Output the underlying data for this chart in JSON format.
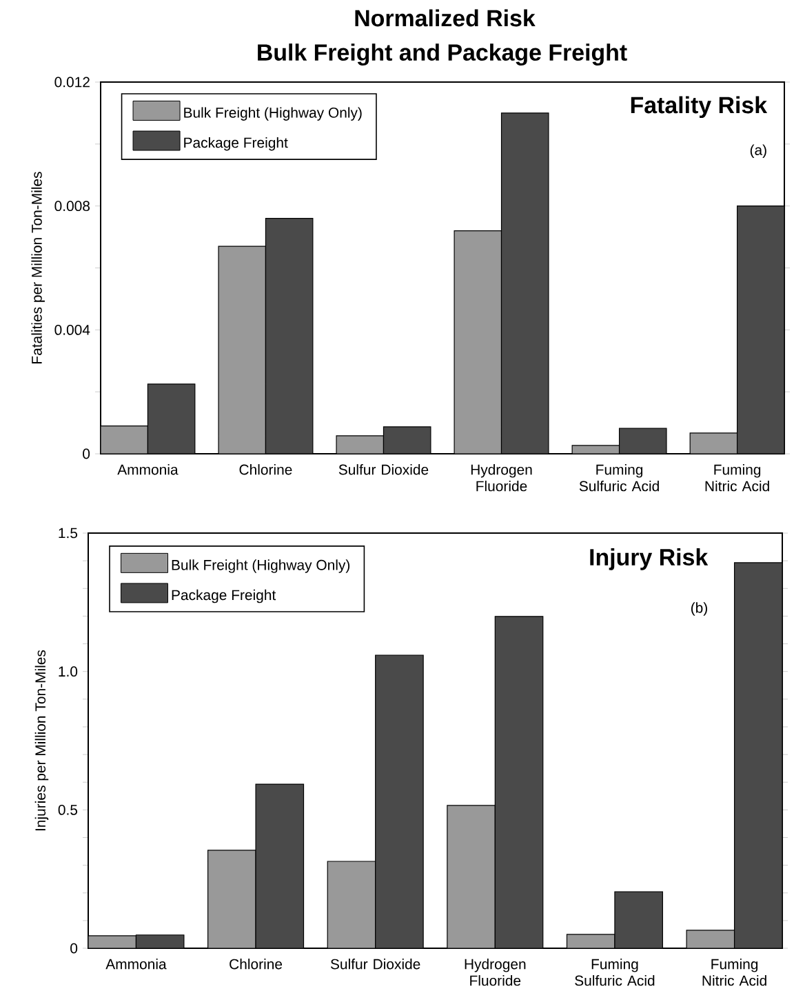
{
  "chart_data": [
    {
      "type": "bar",
      "title": "Normalized Risk",
      "subtitle": "Bulk Freight and Package Freight",
      "ylabel": "Fatalities per Million Ton-Miles",
      "annotations": [
        "Fatality Risk",
        "(a)"
      ],
      "categories": [
        "Ammonia",
        "Chlorine",
        "Sulfur Dioxide",
        "Hydrogen Fluoride",
        "Fuming Sulfuric Acid",
        "Fuming Nitric Acid"
      ],
      "series": [
        {
          "name": "Bulk Freight (Highway Only)",
          "color": "#999999",
          "values": [
            0.0009,
            0.0067,
            0.00058,
            0.0072,
            0.00027,
            0.00067
          ]
        },
        {
          "name": "Package Freight",
          "color": "#4a4a4a",
          "values": [
            0.00225,
            0.0076,
            0.00087,
            0.011,
            0.00082,
            0.008
          ]
        }
      ],
      "ylim": [
        0,
        0.012
      ],
      "yticks": [
        0,
        {
          "value": 0.002,
          "label": null
        },
        0.004,
        {
          "value": 0.006,
          "label": null
        },
        0.008,
        {
          "value": 0.01,
          "label": null
        },
        0.012
      ],
      "grid": false,
      "legend": "top left"
    },
    {
      "type": "bar",
      "ylabel": "Injuries per Million Ton-Miles",
      "annotations": [
        "Injury Risk",
        "(b)"
      ],
      "categories": [
        "Ammonia",
        "Chlorine",
        "Sulfur Dioxide",
        "Hydrogen Fluoride",
        "Fuming Sulfuric Acid",
        "Fuming Nitric Acid"
      ],
      "series": [
        {
          "name": "Bulk Freight (Highway Only)",
          "color": "#999999",
          "values": [
            0.045,
            0.354,
            0.314,
            0.516,
            0.05,
            0.065
          ]
        },
        {
          "name": "Package Freight",
          "color": "#4a4a4a",
          "values": [
            0.048,
            0.593,
            1.059,
            1.199,
            0.204,
            1.393
          ]
        }
      ],
      "ylim": [
        0,
        1.5
      ],
      "yticks": [
        0,
        {
          "value": 0.1,
          "label": null
        },
        {
          "value": 0.2,
          "label": null
        },
        {
          "value": 0.3,
          "label": null
        },
        {
          "value": 0.4,
          "label": null
        },
        0.5,
        {
          "value": 0.6,
          "label": null
        },
        {
          "value": 0.7,
          "label": null
        },
        {
          "value": 0.8,
          "label": null
        },
        {
          "value": 0.9,
          "label": null
        },
        {
          "value": 1,
          "label": "1.0"
        },
        {
          "value": 1.1,
          "label": null
        },
        {
          "value": 1.2,
          "label": null
        },
        {
          "value": 1.3,
          "label": null
        },
        {
          "value": 1.4,
          "label": null
        },
        1.5
      ],
      "grid": false,
      "legend": "top left"
    }
  ]
}
